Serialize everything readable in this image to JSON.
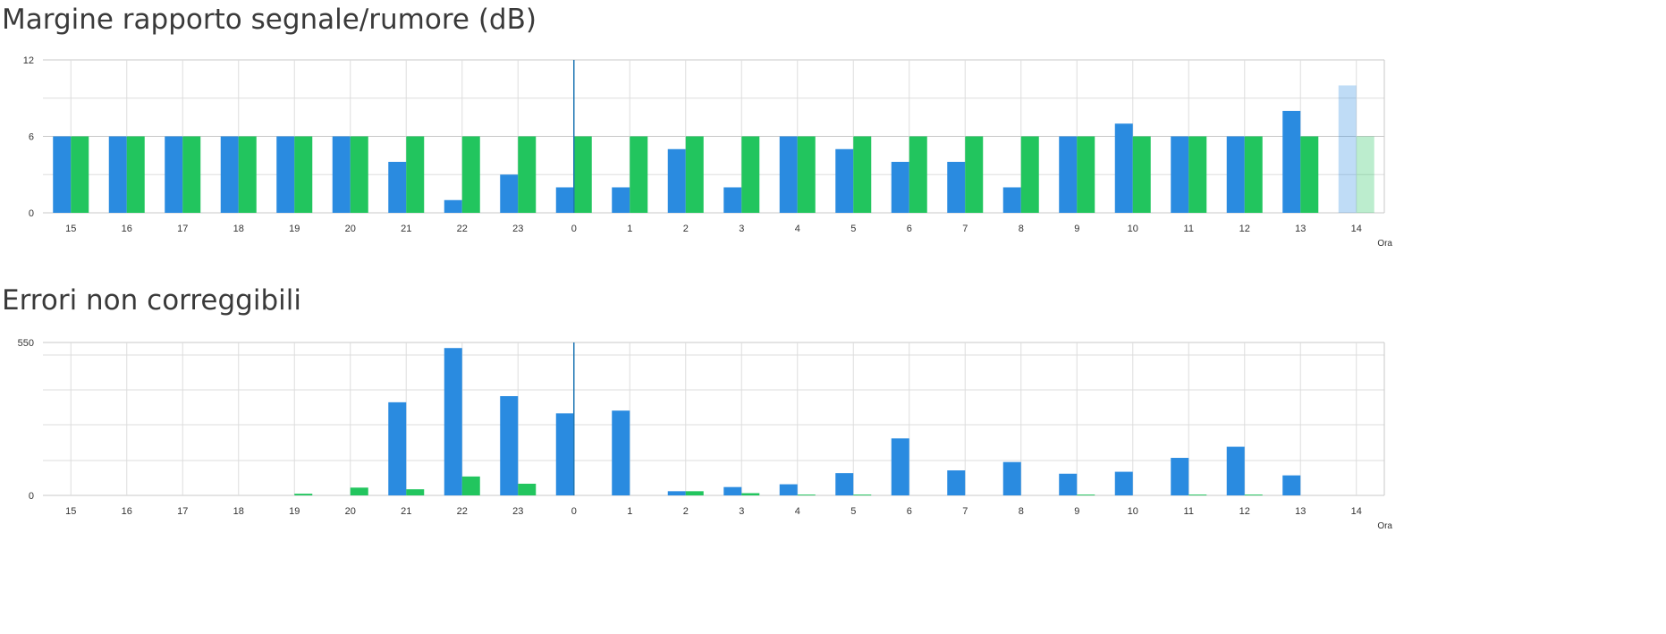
{
  "chart_data": [
    {
      "type": "bar",
      "title": "Margine rapporto segnale/rumore (dB)",
      "xlabel": "Ora",
      "ylabel": "",
      "ylim": [
        0,
        12
      ],
      "yticks": [
        "0",
        "6",
        "12"
      ],
      "categories": [
        "15",
        "16",
        "17",
        "18",
        "19",
        "20",
        "21",
        "22",
        "23",
        "0",
        "1",
        "2",
        "3",
        "4",
        "5",
        "6",
        "7",
        "8",
        "9",
        "10",
        "11",
        "12",
        "13",
        "14"
      ],
      "series": [
        {
          "color": "#2a8be0",
          "values": [
            6,
            6,
            6,
            6,
            6,
            6,
            4,
            1,
            3,
            2,
            2,
            5,
            2,
            6,
            5,
            4,
            4,
            2,
            6,
            7,
            6,
            6,
            8,
            10
          ]
        },
        {
          "color": "#22c55e",
          "values": [
            6,
            6,
            6,
            6,
            6,
            6,
            6,
            6,
            6,
            6,
            6,
            6,
            6,
            6,
            6,
            6,
            6,
            6,
            6,
            6,
            6,
            6,
            6,
            6
          ]
        }
      ],
      "marker_category": "0",
      "faded_category": "14",
      "grid": true
    },
    {
      "type": "bar",
      "title": "Errori non correggibili",
      "xlabel": "Ora",
      "ylabel": "",
      "ylim": [
        0,
        550
      ],
      "yticks": [
        "0",
        "550"
      ],
      "categories": [
        "15",
        "16",
        "17",
        "18",
        "19",
        "20",
        "21",
        "22",
        "23",
        "0",
        "1",
        "2",
        "3",
        "4",
        "5",
        "6",
        "7",
        "8",
        "9",
        "10",
        "11",
        "12",
        "13",
        "14"
      ],
      "series": [
        {
          "color": "#2a8be0",
          "values": [
            0,
            0,
            0,
            0,
            0,
            0,
            335,
            530,
            357,
            295,
            305,
            15,
            30,
            40,
            80,
            205,
            90,
            120,
            78,
            85,
            135,
            175,
            72,
            0
          ]
        },
        {
          "color": "#22c55e",
          "values": [
            0,
            0,
            0,
            0,
            6,
            28,
            22,
            68,
            42,
            0,
            0,
            15,
            8,
            3,
            3,
            0,
            0,
            0,
            3,
            0,
            3,
            3,
            0,
            0
          ]
        }
      ],
      "marker_category": "0",
      "faded_category": "",
      "grid": true
    }
  ]
}
